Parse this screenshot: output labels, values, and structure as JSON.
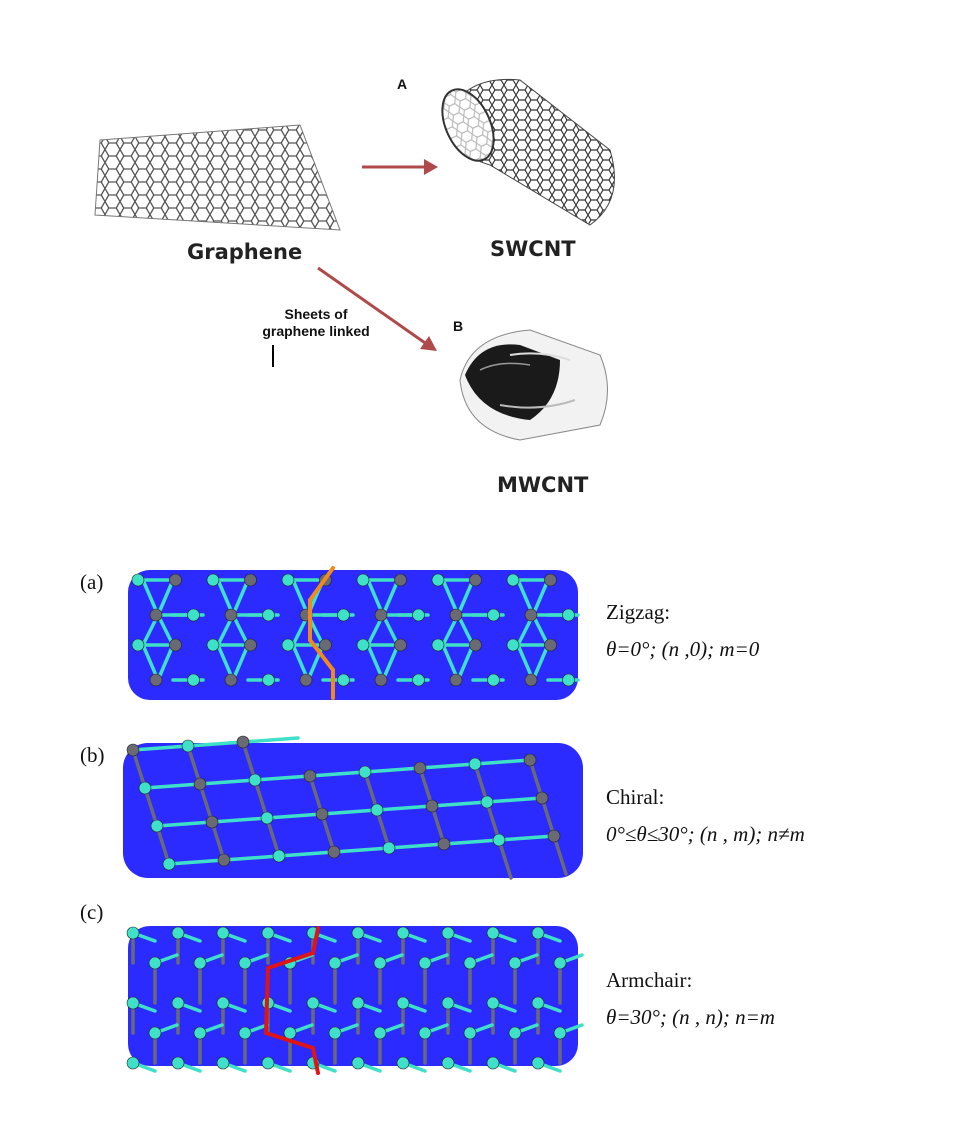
{
  "top": {
    "graphene_label": "Graphene",
    "swcnt_label": "SWCNT",
    "mwcnt_label": "MWCNT",
    "panel_a": "A",
    "panel_b": "B",
    "link_line1": "Sheets of",
    "link_line2": "graphene linked"
  },
  "bottom": {
    "rows": [
      {
        "tag": "(a)",
        "title": "Zigzag:",
        "formula": "θ=0°; (n ,0); m=0"
      },
      {
        "tag": "(b)",
        "title": "Chiral:",
        "formula": "0°≤θ≤30°; (n , m); n≠m"
      },
      {
        "tag": "(c)",
        "title": "Armchair:",
        "formula": "θ=30°; (n , n); n=m"
      }
    ]
  },
  "colors": {
    "tube": "#2b2bff",
    "bond_cyan": "#3fe0c8",
    "atom_gray": "#6a6a74",
    "highlight_orange": "#f08a1c",
    "highlight_red": "#e01414",
    "arrow": "#b04a4a"
  }
}
